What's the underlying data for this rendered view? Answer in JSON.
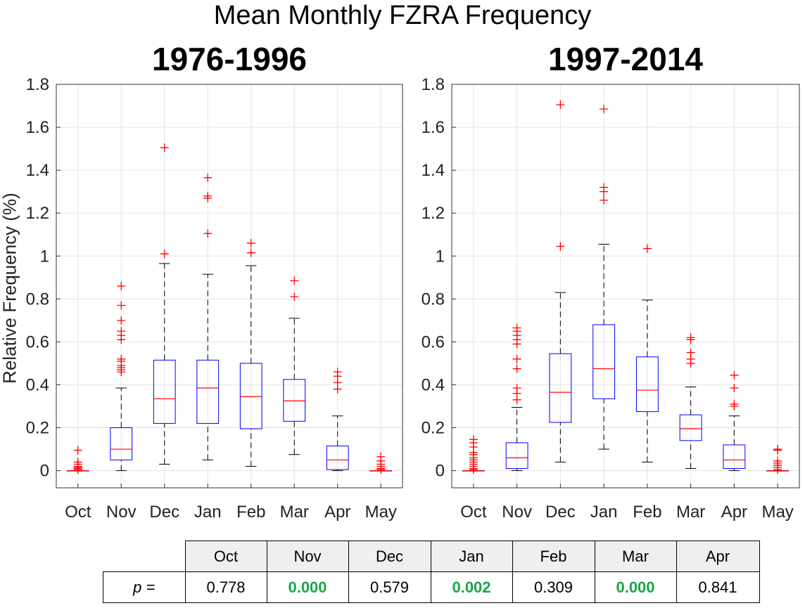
{
  "title": "Mean Monthly FZRA Frequency",
  "ylabel": "Relative Frequency (%)",
  "chart_data": [
    {
      "type": "box",
      "title": "1976-1996",
      "ylabel": "Relative Frequency (%)",
      "ylim": [
        -0.08,
        1.8
      ],
      "yticks": [
        "0",
        "0.2",
        "0.4",
        "0.6",
        "0.8",
        "1",
        "1.2",
        "1.4",
        "1.6",
        "1.8"
      ],
      "grid": true,
      "categories": [
        "Oct",
        "Nov",
        "Dec",
        "Jan",
        "Feb",
        "Mar",
        "Apr",
        "May"
      ],
      "boxes": [
        {
          "min": 0.0,
          "q1": 0.0,
          "median": 0.0,
          "q3": 0.0,
          "max": 0.0,
          "outliers": [
            0.005,
            0.01,
            0.015,
            0.02,
            0.03,
            0.04,
            0.095
          ]
        },
        {
          "min": 0.0,
          "q1": 0.05,
          "median": 0.1,
          "q3": 0.2,
          "max": 0.385,
          "outliers": [
            0.46,
            0.47,
            0.48,
            0.49,
            0.51,
            0.52,
            0.61,
            0.63,
            0.65,
            0.7,
            0.77,
            0.86
          ]
        },
        {
          "min": 0.03,
          "q1": 0.22,
          "median": 0.335,
          "q3": 0.515,
          "max": 0.965,
          "outliers": [
            1.01,
            1.505
          ]
        },
        {
          "min": 0.05,
          "q1": 0.22,
          "median": 0.385,
          "q3": 0.515,
          "max": 0.915,
          "outliers": [
            1.105,
            1.27,
            1.28,
            1.365
          ]
        },
        {
          "min": 0.02,
          "q1": 0.195,
          "median": 0.345,
          "q3": 0.5,
          "max": 0.955,
          "outliers": [
            1.015,
            1.06
          ]
        },
        {
          "min": 0.075,
          "q1": 0.23,
          "median": 0.325,
          "q3": 0.425,
          "max": 0.71,
          "outliers": [
            0.81,
            0.885
          ]
        },
        {
          "min": 0.0,
          "q1": 0.005,
          "median": 0.05,
          "q3": 0.115,
          "max": 0.255,
          "outliers": [
            0.38,
            0.41,
            0.44,
            0.46
          ]
        },
        {
          "min": 0.0,
          "q1": 0.0,
          "median": 0.0,
          "q3": 0.0,
          "max": 0.0,
          "outliers": [
            0.005,
            0.01,
            0.02,
            0.03,
            0.045,
            0.065
          ]
        }
      ]
    },
    {
      "type": "box",
      "title": "1997-2014",
      "ylim": [
        -0.08,
        1.8
      ],
      "yticks": [
        "0",
        "0.2",
        "0.4",
        "0.6",
        "0.8",
        "1",
        "1.2",
        "1.4",
        "1.6",
        "1.8"
      ],
      "grid": true,
      "categories": [
        "Oct",
        "Nov",
        "Dec",
        "Jan",
        "Feb",
        "Mar",
        "Apr",
        "May"
      ],
      "boxes": [
        {
          "min": 0.0,
          "q1": 0.0,
          "median": 0.0,
          "q3": 0.0,
          "max": 0.0,
          "outliers": [
            0.005,
            0.01,
            0.02,
            0.03,
            0.04,
            0.05,
            0.06,
            0.075,
            0.085,
            0.11,
            0.13,
            0.145
          ]
        },
        {
          "min": 0.0,
          "q1": 0.01,
          "median": 0.06,
          "q3": 0.13,
          "max": 0.295,
          "outliers": [
            0.33,
            0.36,
            0.385,
            0.475,
            0.52,
            0.59,
            0.61,
            0.63,
            0.65,
            0.665
          ]
        },
        {
          "min": 0.04,
          "q1": 0.225,
          "median": 0.365,
          "q3": 0.545,
          "max": 0.83,
          "outliers": [
            1.045,
            1.705
          ]
        },
        {
          "min": 0.1,
          "q1": 0.335,
          "median": 0.475,
          "q3": 0.68,
          "max": 1.055,
          "outliers": [
            1.26,
            1.3,
            1.32,
            1.685
          ]
        },
        {
          "min": 0.04,
          "q1": 0.275,
          "median": 0.375,
          "q3": 0.53,
          "max": 0.795,
          "outliers": [
            1.035
          ]
        },
        {
          "min": 0.01,
          "q1": 0.14,
          "median": 0.195,
          "q3": 0.26,
          "max": 0.39,
          "outliers": [
            0.5,
            0.52,
            0.55,
            0.61,
            0.62
          ]
        },
        {
          "min": 0.0,
          "q1": 0.01,
          "median": 0.05,
          "q3": 0.12,
          "max": 0.255,
          "outliers": [
            0.3,
            0.31,
            0.385,
            0.445
          ]
        },
        {
          "min": 0.0,
          "q1": 0.0,
          "median": 0.0,
          "q3": 0.0,
          "max": 0.0,
          "outliers": [
            0.005,
            0.015,
            0.025,
            0.035,
            0.045,
            0.095,
            0.1
          ]
        }
      ]
    }
  ],
  "pvalue_table": {
    "row_label": "p =",
    "months": [
      "Oct",
      "Nov",
      "Dec",
      "Jan",
      "Feb",
      "Mar",
      "Apr"
    ],
    "values": [
      "0.778",
      "0.000",
      "0.579",
      "0.002",
      "0.309",
      "0.000",
      "0.841"
    ],
    "significant": [
      false,
      true,
      false,
      true,
      false,
      true,
      false
    ]
  },
  "colors": {
    "box": "#0000ff",
    "median": "#ff0000",
    "outlier": "#ff0000",
    "whisker": "#000000",
    "grid": "#e3e3e3",
    "significant": "#1aa64a"
  }
}
